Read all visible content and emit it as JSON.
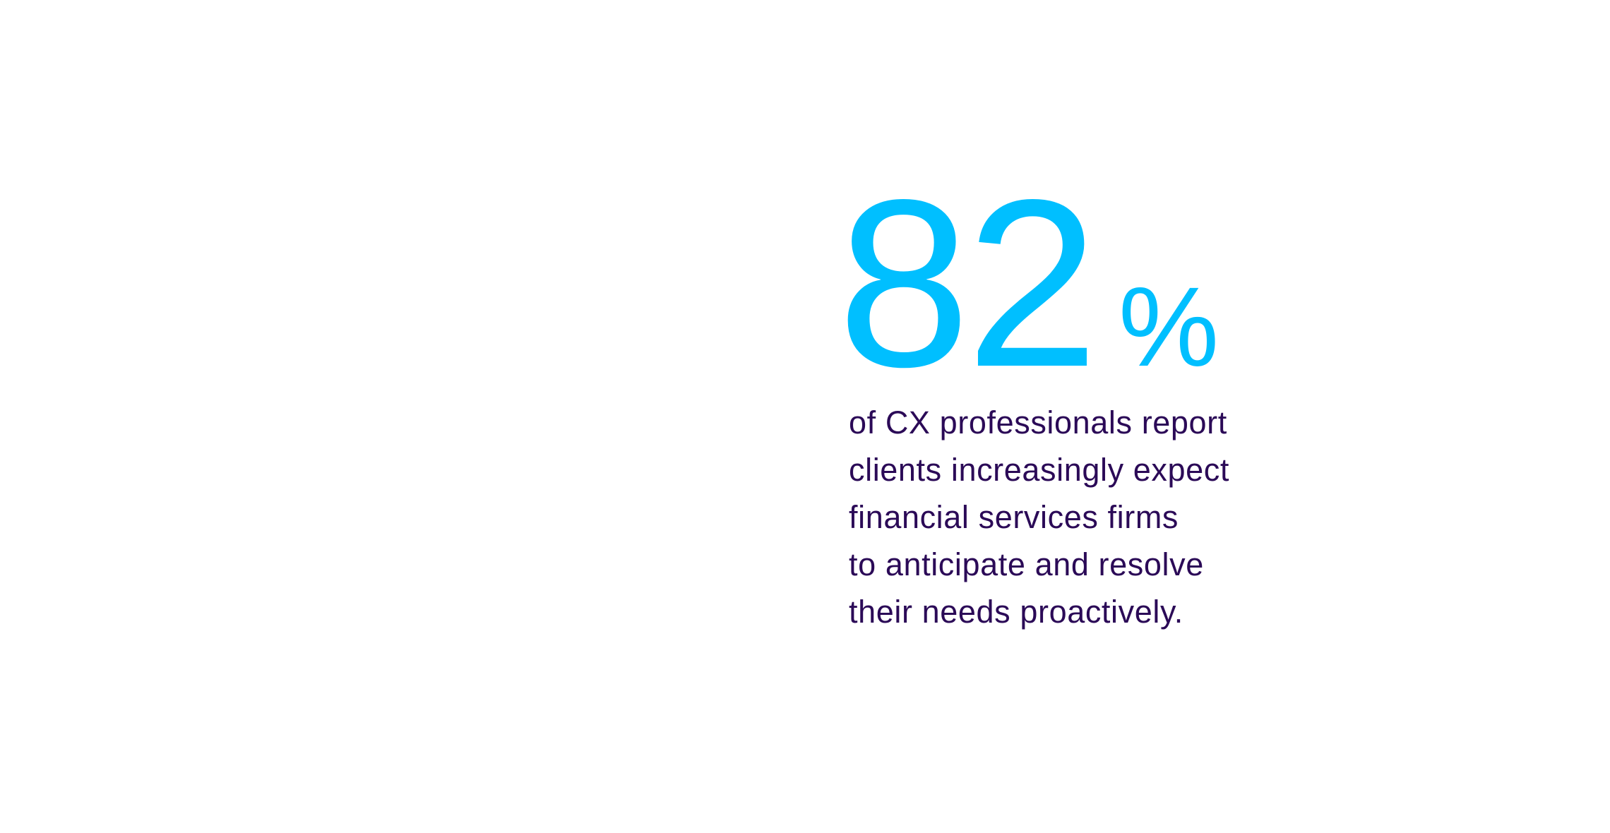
{
  "stat": {
    "value": "82",
    "unit": "%",
    "lines": [
      "of CX professionals report",
      "clients increasingly expect",
      "financial services firms",
      "to anticipate and resolve",
      "their needs proactively."
    ]
  },
  "colors": {
    "accent": "#00bfff",
    "text": "#2b0a57",
    "background": "#ffffff"
  }
}
